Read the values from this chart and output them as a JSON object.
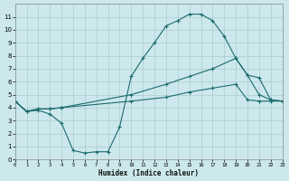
{
  "xlabel": "Humidex (Indice chaleur)",
  "bg_color": "#cce8ec",
  "grid_color": "#aacccc",
  "line_color": "#1a6b6e",
  "line1_x": [
    0,
    1,
    2,
    3,
    4,
    5,
    6,
    7,
    8,
    9,
    10,
    11,
    12,
    13,
    14,
    15,
    16,
    17,
    18,
    19,
    20,
    21,
    22,
    23
  ],
  "line1_y": [
    4.5,
    3.7,
    3.8,
    3.5,
    2.8,
    0.7,
    0.5,
    0.6,
    0.6,
    2.5,
    6.4,
    7.8,
    9.0,
    10.3,
    10.7,
    11.2,
    11.2,
    10.7,
    9.5,
    7.8,
    6.5,
    6.3,
    4.6,
    4.5
  ],
  "line2_x": [
    0,
    1,
    2,
    3,
    4,
    10,
    13,
    15,
    17,
    19,
    20,
    21,
    22,
    23
  ],
  "line2_y": [
    4.5,
    3.7,
    3.9,
    3.9,
    4.0,
    5.0,
    5.8,
    6.4,
    7.0,
    7.8,
    6.5,
    5.0,
    4.6,
    4.5
  ],
  "line3_x": [
    0,
    1,
    2,
    3,
    4,
    10,
    13,
    15,
    17,
    19,
    20,
    21,
    22,
    23
  ],
  "line3_y": [
    4.5,
    3.7,
    3.9,
    3.9,
    4.0,
    4.5,
    4.8,
    5.2,
    5.5,
    5.8,
    4.6,
    4.5,
    4.5,
    4.5
  ],
  "xlim": [
    0,
    23
  ],
  "ylim": [
    0,
    12
  ],
  "xticks": [
    0,
    1,
    2,
    3,
    4,
    5,
    6,
    7,
    8,
    9,
    10,
    11,
    12,
    13,
    14,
    15,
    16,
    17,
    18,
    19,
    20,
    21,
    22,
    23
  ],
  "yticks": [
    0,
    1,
    2,
    3,
    4,
    5,
    6,
    7,
    8,
    9,
    10,
    11
  ]
}
